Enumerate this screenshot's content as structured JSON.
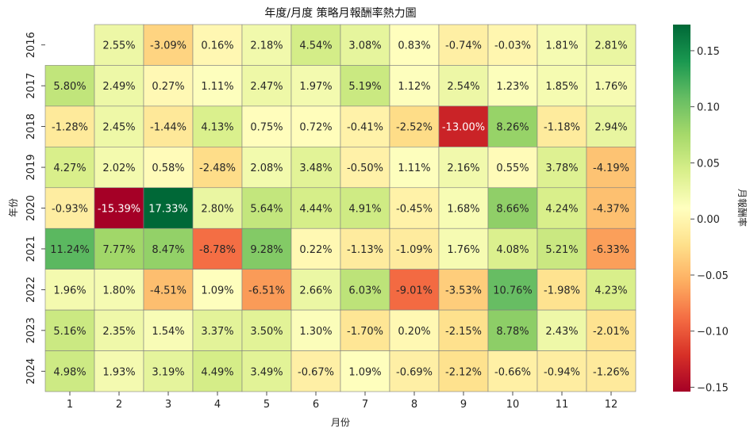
{
  "chart_data": {
    "type": "heatmap",
    "title": "年度/月度 策略月報酬率熱力圖",
    "xlabel": "月份",
    "ylabel": "年份",
    "colorbar_label": "月報酬率",
    "x_categories": [
      "1",
      "2",
      "3",
      "4",
      "5",
      "6",
      "7",
      "8",
      "9",
      "10",
      "11",
      "12"
    ],
    "y_categories": [
      "2016",
      "2017",
      "2018",
      "2019",
      "2020",
      "2021",
      "2022",
      "2023",
      "2024"
    ],
    "values": [
      [
        null,
        0.0255,
        -0.0309,
        0.0016,
        0.0218,
        0.0454,
        0.0308,
        0.0083,
        -0.0074,
        -0.0003,
        0.0181,
        0.0281
      ],
      [
        0.058,
        0.0249,
        0.0027,
        0.0111,
        0.0247,
        0.0197,
        0.0519,
        0.0112,
        0.0254,
        0.0123,
        0.0185,
        0.0176
      ],
      [
        -0.0128,
        0.0245,
        -0.0144,
        0.0413,
        0.0075,
        0.0072,
        -0.0041,
        -0.0252,
        -0.13,
        0.0826,
        -0.0118,
        0.0294
      ],
      [
        0.0427,
        0.0202,
        0.0058,
        -0.0248,
        0.0208,
        0.0348,
        -0.005,
        0.0111,
        0.0216,
        0.0055,
        0.0378,
        -0.0419
      ],
      [
        -0.0093,
        -0.1539,
        0.1733,
        0.028,
        0.0564,
        0.0444,
        0.0491,
        -0.0045,
        0.0168,
        0.0866,
        0.0424,
        -0.0437
      ],
      [
        0.1124,
        0.0777,
        0.0847,
        -0.0878,
        0.0928,
        0.0022,
        -0.0113,
        -0.0109,
        0.0176,
        0.0408,
        0.0521,
        -0.0633
      ],
      [
        0.0196,
        0.018,
        -0.0451,
        0.0109,
        -0.0651,
        0.0266,
        0.0603,
        -0.0901,
        -0.0353,
        0.1076,
        -0.0198,
        0.0423
      ],
      [
        0.0516,
        0.0235,
        0.0154,
        0.0337,
        0.035,
        0.013,
        -0.017,
        0.002,
        -0.0215,
        0.0878,
        0.0243,
        -0.0201
      ],
      [
        0.0498,
        0.0193,
        0.0319,
        0.0449,
        0.0349,
        -0.0067,
        0.0109,
        -0.0069,
        -0.0212,
        -0.0066,
        -0.0094,
        -0.0126
      ]
    ],
    "value_labels": [
      [
        "",
        "2.55%",
        "-3.09%",
        "0.16%",
        "2.18%",
        "4.54%",
        "3.08%",
        "0.83%",
        "-0.74%",
        "-0.03%",
        "1.81%",
        "2.81%"
      ],
      [
        "5.80%",
        "2.49%",
        "0.27%",
        "1.11%",
        "2.47%",
        "1.97%",
        "5.19%",
        "1.12%",
        "2.54%",
        "1.23%",
        "1.85%",
        "1.76%"
      ],
      [
        "-1.28%",
        "2.45%",
        "-1.44%",
        "4.13%",
        "0.75%",
        "0.72%",
        "-0.41%",
        "-2.52%",
        "-13.00%",
        "8.26%",
        "-1.18%",
        "2.94%"
      ],
      [
        "4.27%",
        "2.02%",
        "0.58%",
        "-2.48%",
        "2.08%",
        "3.48%",
        "-0.50%",
        "1.11%",
        "2.16%",
        "0.55%",
        "3.78%",
        "-4.19%"
      ],
      [
        "-0.93%",
        "-15.39%",
        "17.33%",
        "2.80%",
        "5.64%",
        "4.44%",
        "4.91%",
        "-0.45%",
        "1.68%",
        "8.66%",
        "4.24%",
        "-4.37%"
      ],
      [
        "11.24%",
        "7.77%",
        "8.47%",
        "-8.78%",
        "9.28%",
        "0.22%",
        "-1.13%",
        "-1.09%",
        "1.76%",
        "4.08%",
        "5.21%",
        "-6.33%"
      ],
      [
        "1.96%",
        "1.80%",
        "-4.51%",
        "1.09%",
        "-6.51%",
        "2.66%",
        "6.03%",
        "-9.01%",
        "-3.53%",
        "10.76%",
        "-1.98%",
        "4.23%"
      ],
      [
        "5.16%",
        "2.35%",
        "1.54%",
        "3.37%",
        "3.50%",
        "1.30%",
        "-1.70%",
        "0.20%",
        "-2.15%",
        "8.78%",
        "2.43%",
        "-2.01%"
      ],
      [
        "4.98%",
        "1.93%",
        "3.19%",
        "4.49%",
        "3.49%",
        "-0.67%",
        "1.09%",
        "-0.69%",
        "-2.12%",
        "-0.66%",
        "-0.94%",
        "-1.26%"
      ]
    ],
    "colorscale": "RdYlGn",
    "color_range": [
      -0.1539,
      0.1733
    ],
    "colorbar_ticks": [
      -0.15,
      -0.1,
      -0.05,
      0.0,
      0.05,
      0.1,
      0.15
    ],
    "colorbar_tick_labels": [
      "−0.15",
      "−0.10",
      "−0.05",
      "0.00",
      "0.05",
      "0.10",
      "0.15"
    ],
    "cell_border_color": "#808080",
    "grid": false,
    "legend": "colorbar-right"
  }
}
